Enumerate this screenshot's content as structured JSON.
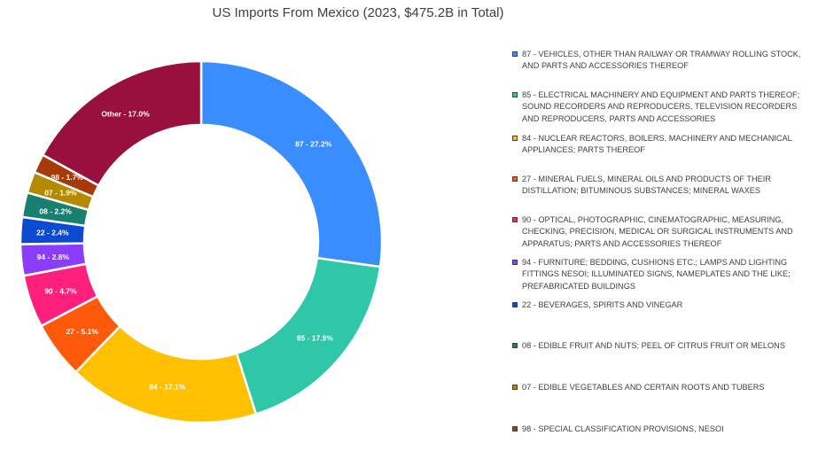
{
  "chart_data": {
    "type": "pie",
    "title": "US Imports From Mexico (2023, $475.2B in Total)",
    "donut": true,
    "legend_position": "right",
    "slices": [
      {
        "code": "87",
        "label": "87 - 27.2%",
        "value": 27.2,
        "color": "#3a8dff",
        "legend": "87 - VEHICLES, OTHER THAN RAILWAY OR TRAMWAY ROLLING STOCK, AND PARTS AND ACCESSORIES THEREOF"
      },
      {
        "code": "85",
        "label": "85 - 17.9%",
        "value": 17.9,
        "color": "#2ec7a8",
        "legend": "85 - ELECTRICAL MACHINERY AND EQUIPMENT AND PARTS THEREOF; SOUND RECORDERS AND REPRODUCERS, TELEVISION RECORDERS AND REPRODUCERS, PARTS AND ACCESSORIES"
      },
      {
        "code": "84",
        "label": "84 - 17.1%",
        "value": 17.1,
        "color": "#ffc000",
        "legend": "84 - NUCLEAR REACTORS, BOILERS, MACHINERY AND MECHANICAL APPLIANCES; PARTS THEREOF"
      },
      {
        "code": "27",
        "label": "27 - 5.1%",
        "value": 5.1,
        "color": "#ff5a0a",
        "legend": "27 - MINERAL FUELS, MINERAL OILS AND PRODUCTS OF THEIR DISTILLATION; BITUMINOUS SUBSTANCES; MINERAL WAXES"
      },
      {
        "code": "90",
        "label": "90 - 4.7%",
        "value": 4.7,
        "color": "#ff1f7d",
        "legend": "90 - OPTICAL, PHOTOGRAPHIC, CINEMATOGRAPHIC, MEASURING, CHECKING, PRECISION, MEDICAL OR SURGICAL INSTRUMENTS AND APPARATUS; PARTS AND ACCESSORIES THEREOF"
      },
      {
        "code": "94",
        "label": "94 - 2.8%",
        "value": 2.8,
        "color": "#8b3dff",
        "legend": "94 - FURNITURE; BEDDING, CUSHIONS ETC.; LAMPS AND LIGHTING FITTINGS NESOI; ILLUMINATED SIGNS, NAMEPLATES AND THE LIKE; PREFABRICATED BUILDINGS"
      },
      {
        "code": "22",
        "label": "22 - 2.4%",
        "value": 2.4,
        "color": "#0a4bd1",
        "legend": "22 - BEVERAGES, SPIRITS AND VINEGAR"
      },
      {
        "code": "08",
        "label": "08 - 2.2%",
        "value": 2.2,
        "color": "#178070",
        "legend": "08 - EDIBLE FRUIT AND NUTS; PEEL OF CITRUS FRUIT OR MELONS"
      },
      {
        "code": "07",
        "label": "07 - 1.9%",
        "value": 1.9,
        "color": "#b38a00",
        "legend": "07 - EDIBLE VEGETABLES AND CERTAIN ROOTS AND TUBERS"
      },
      {
        "code": "98",
        "label": "98 - 1.7%",
        "value": 1.7,
        "color": "#a83a08",
        "legend": "98 - SPECIAL CLASSIFICATION PROVISIONS, NESOI"
      },
      {
        "code": "Other",
        "label": "Other - 17.0%",
        "value": 17.0,
        "color": "#990f3d",
        "legend": ""
      }
    ]
  }
}
